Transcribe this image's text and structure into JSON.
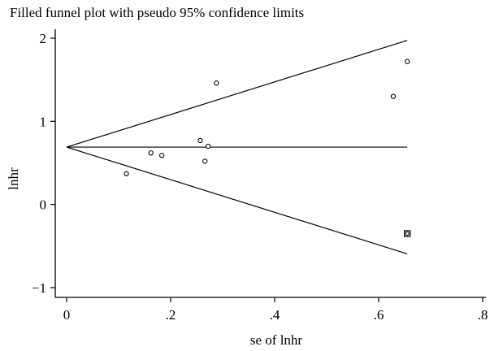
{
  "chart_data": {
    "type": "scatter",
    "title": "Filled funnel plot with pseudo 95% confidence limits",
    "xlabel": "se of lnhr",
    "ylabel": "lnhr",
    "xlim": [
      0,
      0.8
    ],
    "ylim": [
      -1,
      2
    ],
    "x_ticks": [
      0,
      0.2,
      0.4,
      0.6,
      0.8
    ],
    "x_tick_labels": [
      "0",
      ".2",
      ".4",
      ".6",
      ".8"
    ],
    "y_ticks": [
      -1,
      0,
      1,
      2
    ],
    "y_tick_labels": [
      "−1",
      "0",
      "1",
      "2"
    ],
    "grid": false,
    "pooled_estimate": 0.69,
    "funnel_max_se": 0.655,
    "series": [
      {
        "marker": "hollow-circle",
        "x": [
          0.115,
          0.162,
          0.183,
          0.257,
          0.266,
          0.272,
          0.288,
          0.628,
          0.655
        ],
        "y": [
          0.37,
          0.62,
          0.59,
          0.77,
          0.52,
          0.7,
          1.46,
          1.3,
          1.72
        ]
      },
      {
        "marker": "filled-square",
        "x": [
          0.655
        ],
        "y": [
          -0.35
        ]
      }
    ]
  }
}
